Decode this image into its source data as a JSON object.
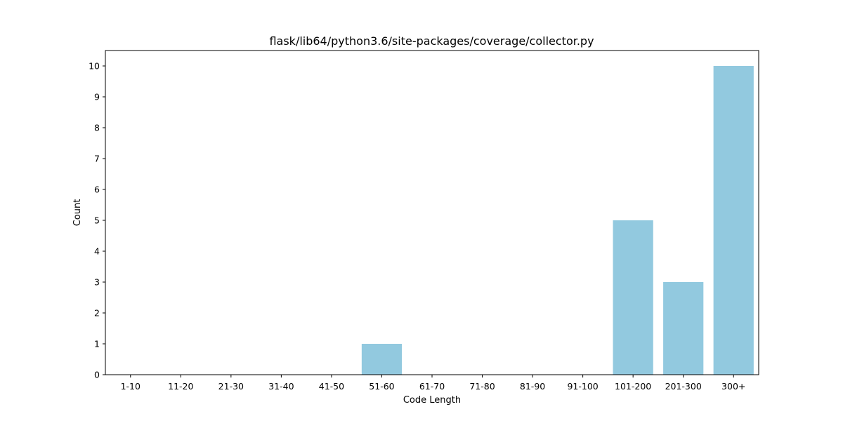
{
  "chart_data": {
    "type": "bar",
    "title": "flask/lib64/python3.6/site-packages/coverage/collector.py",
    "xlabel": "Code Length",
    "ylabel": "Count",
    "categories": [
      "1-10",
      "11-20",
      "21-30",
      "31-40",
      "41-50",
      "51-60",
      "61-70",
      "71-80",
      "81-90",
      "91-100",
      "101-200",
      "201-300",
      "300+"
    ],
    "values": [
      0,
      0,
      0,
      0,
      0,
      1,
      0,
      0,
      0,
      0,
      5,
      3,
      10
    ],
    "ylim": [
      0,
      10.5
    ],
    "yticks": [
      0,
      1,
      2,
      3,
      4,
      5,
      6,
      7,
      8,
      9,
      10
    ],
    "grid": false,
    "bar_color": "#92c9df"
  }
}
